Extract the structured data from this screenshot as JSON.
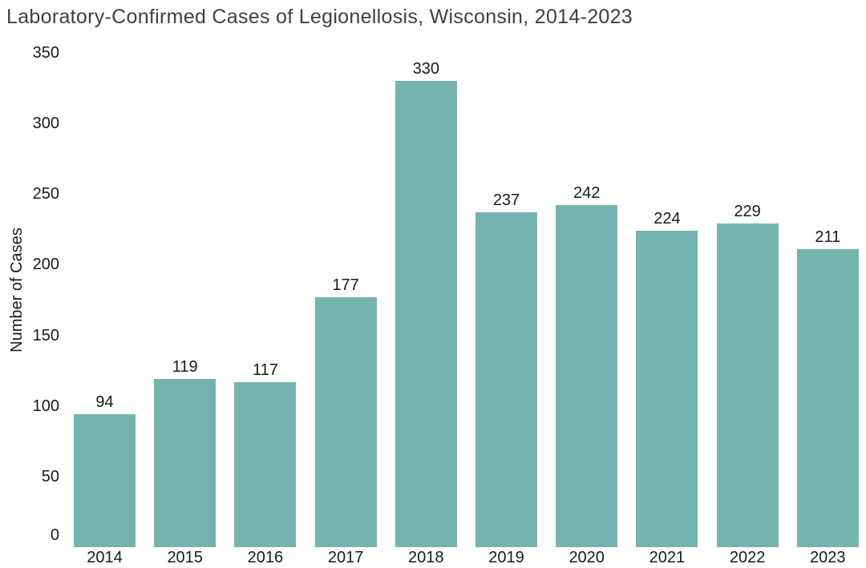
{
  "chart_data": {
    "type": "bar",
    "title": "Laboratory-Confirmed Cases of Legionellosis, Wisconsin, 2014-2023",
    "xlabel": "",
    "ylabel": "Number of Cases",
    "categories": [
      "2014",
      "2015",
      "2016",
      "2017",
      "2018",
      "2019",
      "2020",
      "2021",
      "2022",
      "2023"
    ],
    "values": [
      94,
      119,
      117,
      177,
      330,
      237,
      242,
      224,
      229,
      211
    ],
    "data_labels": [
      94,
      119,
      117,
      177,
      330,
      237,
      242,
      224,
      229,
      211
    ],
    "yticks": [
      0,
      50,
      100,
      150,
      200,
      250,
      300,
      350
    ],
    "ylim": [
      0,
      350
    ],
    "grid": false,
    "legend": false,
    "axis_lines": false,
    "colors": {
      "bar": "#74B4AE",
      "title_text": "#404040",
      "label_text": "#1A1A1A",
      "background": "#FFFFFF"
    }
  }
}
